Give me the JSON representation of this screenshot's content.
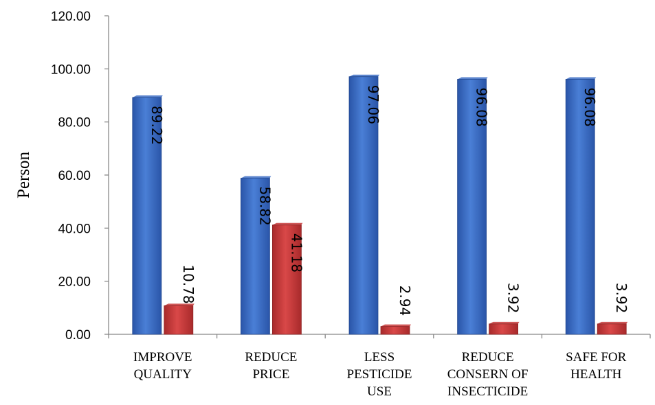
{
  "chart_data": {
    "type": "bar",
    "title": "",
    "ylabel": "Person",
    "xlabel": "",
    "ylim": [
      0,
      120
    ],
    "yticks": [
      "0.00",
      "20.00",
      "40.00",
      "60.00",
      "80.00",
      "100.00",
      "120.00"
    ],
    "categories": [
      [
        "IMPROVE",
        "QUALITY"
      ],
      [
        "REDUCE",
        "PRICE"
      ],
      [
        "LESS",
        "PESTICIDE",
        "USE"
      ],
      [
        "REDUCE",
        "CONSERN OF",
        "INSECTICIDE"
      ],
      [
        "SAFE FOR",
        "HEALTH"
      ]
    ],
    "series": [
      {
        "values": [
          89.22,
          58.82,
          97.06,
          96.08,
          96.08
        ],
        "labels": [
          "89.22",
          "58.82",
          "97.06",
          "96.08",
          "96.08"
        ],
        "color": "#3e6fc4"
      },
      {
        "values": [
          10.78,
          41.18,
          2.94,
          3.92,
          3.92
        ],
        "labels": [
          "10.78",
          "41.18",
          "2.94",
          "3.92",
          "3.92"
        ],
        "color": "#c7393a"
      }
    ],
    "grid": false,
    "legend": "none"
  }
}
